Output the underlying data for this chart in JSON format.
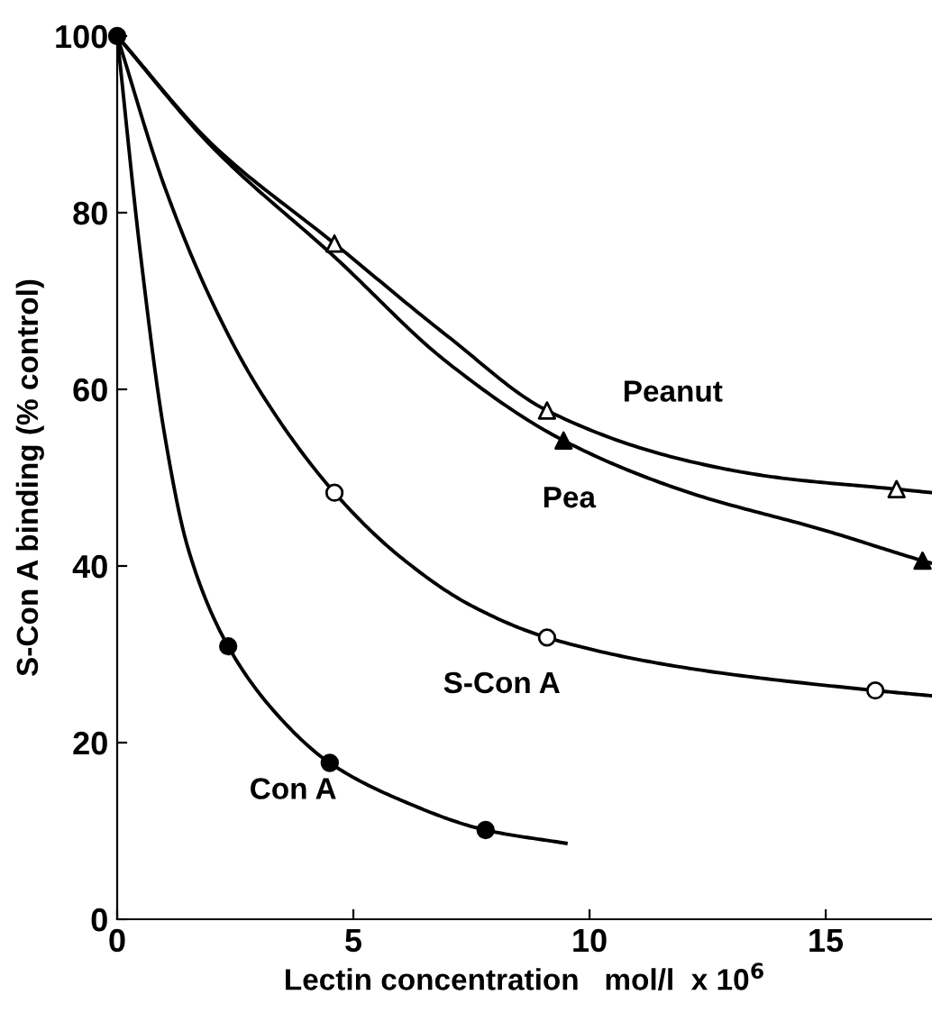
{
  "chart_data": {
    "type": "line",
    "xlabel": "Lectin concentration   mol/l  x 10$^{6}$",
    "ylabel": "S-Con A binding (% control)",
    "xlim": [
      0,
      17.25
    ],
    "ylim": [
      0,
      100
    ],
    "xticks": [
      0,
      5,
      10,
      15
    ],
    "yticks": [
      0,
      20,
      40,
      60,
      80,
      100
    ],
    "grid": false,
    "legend": false,
    "series": [
      {
        "name": "Peanut",
        "color": "#000000",
        "marker": "none",
        "x": [
          0,
          2,
          4.6,
          7,
          9.1,
          12,
          14,
          16.5,
          17.25
        ],
        "values": [
          100,
          87.8,
          76.5,
          66,
          57.6,
          52,
          50,
          48.7,
          48.3
        ]
      },
      {
        "name": "Pea",
        "color": "#000000",
        "marker": "none",
        "x": [
          0,
          2,
          4.6,
          7,
          9.45,
          12,
          15,
          17.05,
          17.25
        ],
        "values": [
          100,
          87.5,
          75,
          63,
          54.2,
          48.5,
          44,
          40.6,
          40.3
        ]
      },
      {
        "name": "S-Con A",
        "color": "#000000",
        "marker": "none",
        "x": [
          0,
          1,
          2,
          3,
          4.6,
          6,
          7.5,
          9.1,
          12,
          16.05,
          17.25
        ],
        "values": [
          100,
          83,
          70,
          60,
          48.3,
          41,
          35.5,
          31.9,
          28.5,
          25.9,
          25.3
        ]
      },
      {
        "name": "Con A",
        "color": "#000000",
        "marker": "none",
        "x": [
          0,
          0.5,
          1,
          1.5,
          2.35,
          3.5,
          4.5,
          6,
          7.8,
          9.5
        ],
        "values": [
          100,
          75,
          55,
          42,
          30.9,
          22.5,
          17.7,
          13.5,
          10.1,
          8.6
        ]
      },
      {
        "type": "scatter",
        "color": "#ffffff",
        "marker": "triangle",
        "x": [
          4.6,
          9.1,
          16.5
        ],
        "values": [
          76.5,
          57.6,
          48.7
        ]
      },
      {
        "type": "scatter",
        "color": "#000000",
        "marker": "triangle",
        "x": [
          9.45,
          17.05
        ],
        "values": [
          54.2,
          40.6
        ]
      },
      {
        "type": "scatter",
        "color": "#ffffff",
        "marker": "circle",
        "x": [
          4.6,
          9.1,
          16.05
        ],
        "values": [
          48.3,
          31.9,
          25.9
        ]
      },
      {
        "type": "scatter",
        "color": "#000000",
        "marker": "circle",
        "x": [
          0,
          2.35,
          4.5,
          7.8
        ],
        "values": [
          100,
          30.9,
          17.7,
          10.1
        ]
      }
    ]
  }
}
